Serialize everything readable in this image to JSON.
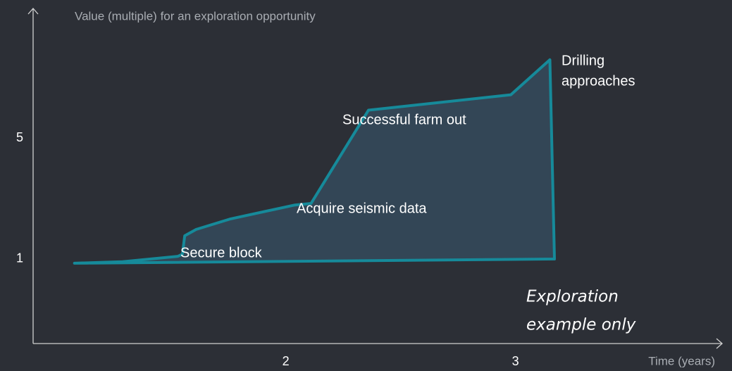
{
  "chart_data": {
    "type": "area",
    "title": "Value (multiple) for an exploration opportunity",
    "x_label": "Time (years)",
    "xlim": [
      0.9,
      3.9
    ],
    "ylim": [
      -1.8,
      9.3
    ],
    "xticks": [
      2,
      3
    ],
    "yticks": [
      1,
      5
    ],
    "series": [
      {
        "color": "#168a9a",
        "x": [
          1.08,
          1.29,
          1.53,
          1.55,
          1.56,
          1.61,
          1.76,
          2.04,
          2.11,
          2.36,
          2.98,
          3.15,
          3.17
        ],
        "values": [
          0.86,
          0.91,
          1.09,
          1.16,
          1.77,
          1.98,
          2.33,
          2.79,
          2.84,
          5.93,
          6.44,
          7.6,
          1.0
        ]
      }
    ],
    "annotations": {
      "secure": "Secure block",
      "seismic": "Acquire seismic data",
      "farm": "Successful farm out",
      "drilling": [
        "Drilling",
        "approaches"
      ],
      "note": [
        "Exploration",
        "example  only"
      ]
    }
  }
}
